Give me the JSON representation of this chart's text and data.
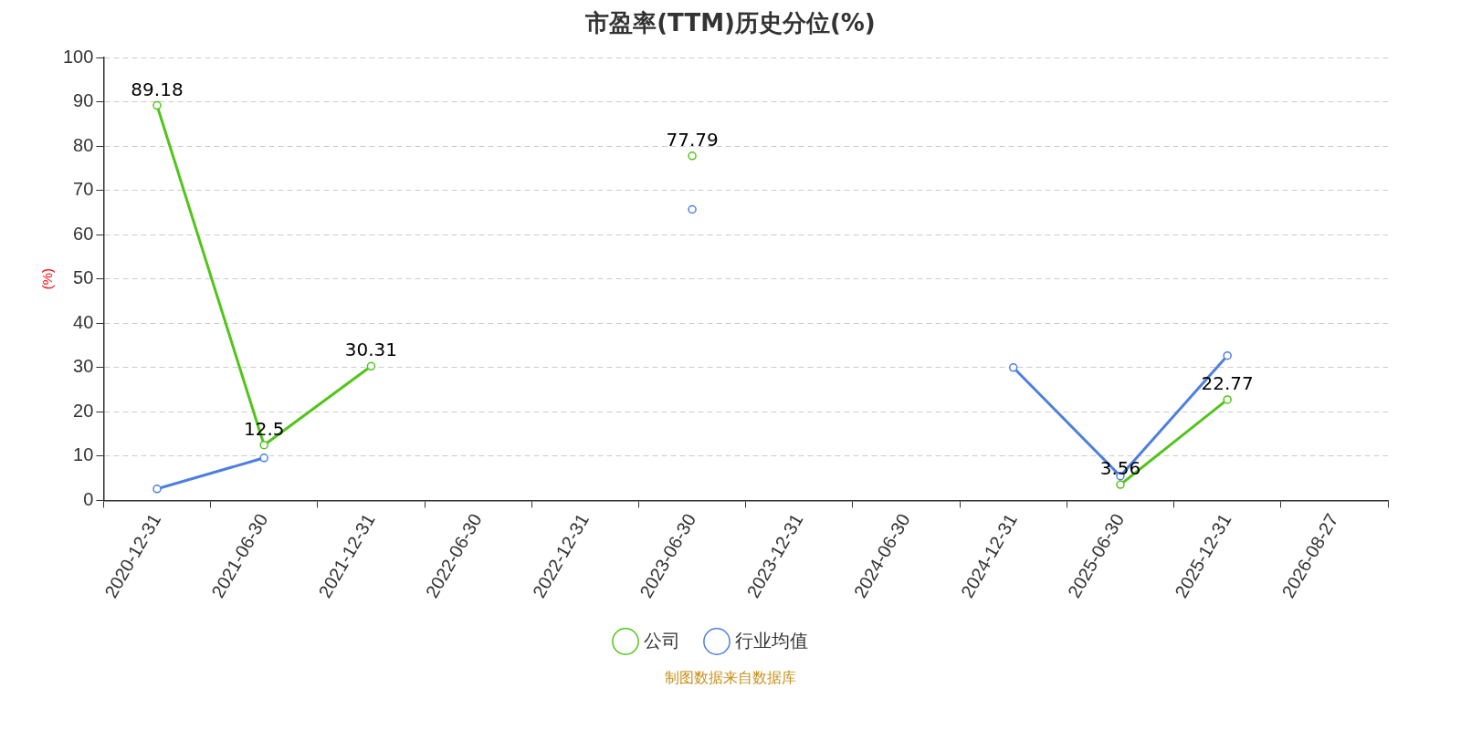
{
  "chart_data": {
    "type": "line",
    "title": "市盈率(TTM)历史分位(%)",
    "ylabel": "(%)",
    "categories": [
      "2020-12-31",
      "2021-06-30",
      "2021-12-31",
      "2022-06-30",
      "2022-12-31",
      "2023-06-30",
      "2023-12-31",
      "2024-06-30",
      "2024-12-31",
      "2025-06-30",
      "2025-12-31",
      "2026-08-27"
    ],
    "series": [
      {
        "name": "公司",
        "color": "#52c41a",
        "values": [
          89.18,
          12.5,
          30.31,
          null,
          null,
          77.79,
          null,
          null,
          null,
          3.56,
          22.77,
          null
        ],
        "value_labels": [
          "89.18",
          "12.5",
          "30.31",
          null,
          null,
          "77.79",
          null,
          null,
          null,
          "3.56",
          "22.77",
          null
        ]
      },
      {
        "name": "行业均值",
        "color": "#4e7fdf",
        "values": [
          2.6,
          9.6,
          null,
          null,
          null,
          65.7,
          null,
          null,
          30,
          5.5,
          32.7,
          null
        ]
      }
    ],
    "ylim": [
      0,
      100
    ],
    "yticks": [
      0,
      10,
      20,
      30,
      40,
      50,
      60,
      70,
      80,
      90,
      100
    ],
    "grid": "y",
    "legend": "bottom",
    "marker": "circle",
    "line_style": "solid",
    "annotations": [
      "制图数据来自数据库"
    ]
  }
}
